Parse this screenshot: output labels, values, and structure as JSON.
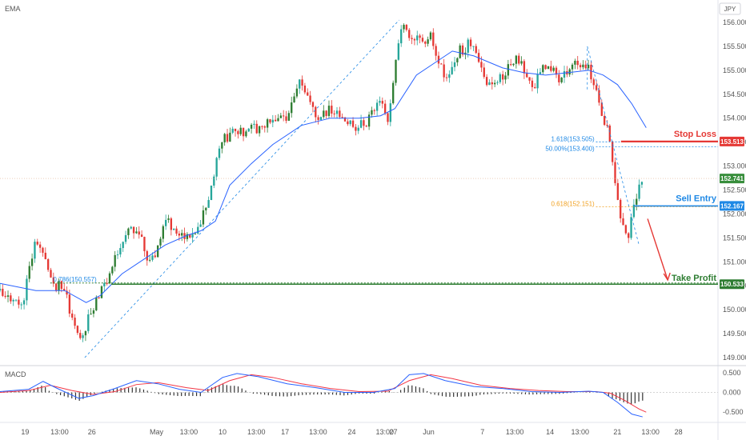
{
  "indicator_label": "EMA",
  "currency_label": "JPY",
  "macd_label": "MACD",
  "colors": {
    "up": "#26a69a",
    "up_strong": "#2e7d32",
    "down": "#e53935",
    "ema": "#2962ff",
    "macd_line": "#2962ff",
    "signal_line": "#f23645",
    "histogram": "#333333",
    "stop_loss": "#e53935",
    "sell_entry": "#1e88e5",
    "take_profit": "#2e7d32",
    "current_price": "#388e3c",
    "fib_blue": "#1e88e5",
    "fib_orange": "#f0a020"
  },
  "chart_data": {
    "type": "candlestick",
    "y_range": [
      148.95,
      156.2
    ],
    "y_ticks": [
      "156.000",
      "155.500",
      "155.000",
      "154.500",
      "154.000",
      "153.500",
      "153.000",
      "152.500",
      "152.000",
      "151.500",
      "151.000",
      "150.500",
      "150.000",
      "149.500",
      "149.000"
    ],
    "y_tick_values": [
      156.0,
      155.5,
      155.0,
      154.5,
      154.0,
      153.5,
      153.0,
      152.5,
      152.0,
      151.5,
      151.0,
      150.5,
      150.0,
      149.5,
      149.0
    ],
    "x_ticks": [
      "19",
      "13:00",
      "26",
      "May",
      "13:00",
      "10",
      "13:00",
      "17",
      "13:00",
      "24",
      "13:00",
      "27",
      "Jun",
      "7",
      "13:00",
      "14",
      "13:00",
      "21",
      "13:00",
      "28"
    ],
    "x_tick_positions": [
      0.035,
      0.083,
      0.128,
      0.218,
      0.263,
      0.31,
      0.357,
      0.397,
      0.443,
      0.49,
      0.536,
      0.548,
      0.597,
      0.672,
      0.717,
      0.766,
      0.808,
      0.86,
      0.906,
      0.945
    ],
    "candle_path_anchors": [
      [
        0.0,
        150.4
      ],
      [
        0.03,
        150.05
      ],
      [
        0.05,
        151.5
      ],
      [
        0.06,
        151.2
      ],
      [
        0.07,
        150.6
      ],
      [
        0.09,
        150.4
      ],
      [
        0.11,
        149.3
      ],
      [
        0.13,
        150.1
      ],
      [
        0.15,
        150.6
      ],
      [
        0.17,
        151.5
      ],
      [
        0.19,
        151.7
      ],
      [
        0.21,
        150.9
      ],
      [
        0.23,
        151.9
      ],
      [
        0.25,
        151.6
      ],
      [
        0.27,
        151.45
      ],
      [
        0.29,
        152.3
      ],
      [
        0.31,
        153.6
      ],
      [
        0.33,
        153.7
      ],
      [
        0.36,
        153.8
      ],
      [
        0.4,
        154.0
      ],
      [
        0.42,
        154.8
      ],
      [
        0.44,
        154.0
      ],
      [
        0.46,
        154.2
      ],
      [
        0.49,
        153.8
      ],
      [
        0.51,
        153.9
      ],
      [
        0.53,
        154.3
      ],
      [
        0.54,
        154.0
      ],
      [
        0.55,
        155.0
      ],
      [
        0.56,
        155.9
      ],
      [
        0.58,
        155.6
      ],
      [
        0.6,
        155.7
      ],
      [
        0.62,
        154.8
      ],
      [
        0.64,
        155.4
      ],
      [
        0.66,
        155.6
      ],
      [
        0.68,
        154.7
      ],
      [
        0.7,
        154.9
      ],
      [
        0.72,
        155.3
      ],
      [
        0.74,
        154.6
      ],
      [
        0.76,
        155.1
      ],
      [
        0.78,
        154.8
      ],
      [
        0.8,
        155.2
      ],
      [
        0.82,
        155.0
      ],
      [
        0.83,
        154.6
      ],
      [
        0.845,
        153.8
      ],
      [
        0.855,
        152.9
      ],
      [
        0.865,
        151.9
      ],
      [
        0.875,
        151.5
      ],
      [
        0.885,
        152.3
      ],
      [
        0.894,
        152.74
      ]
    ],
    "ema_points": [
      [
        0.0,
        150.55
      ],
      [
        0.05,
        150.4
      ],
      [
        0.09,
        150.4
      ],
      [
        0.12,
        150.15
      ],
      [
        0.14,
        150.3
      ],
      [
        0.17,
        150.75
      ],
      [
        0.2,
        151.05
      ],
      [
        0.23,
        151.35
      ],
      [
        0.26,
        151.55
      ],
      [
        0.28,
        151.65
      ],
      [
        0.3,
        151.85
      ],
      [
        0.32,
        152.6
      ],
      [
        0.35,
        153.05
      ],
      [
        0.38,
        153.45
      ],
      [
        0.42,
        153.85
      ],
      [
        0.46,
        154.0
      ],
      [
        0.5,
        154.0
      ],
      [
        0.53,
        154.05
      ],
      [
        0.55,
        154.2
      ],
      [
        0.58,
        154.9
      ],
      [
        0.61,
        155.2
      ],
      [
        0.63,
        155.4
      ],
      [
        0.66,
        155.3
      ],
      [
        0.7,
        155.05
      ],
      [
        0.73,
        154.95
      ],
      [
        0.76,
        154.9
      ],
      [
        0.79,
        154.95
      ],
      [
        0.82,
        155.0
      ],
      [
        0.84,
        154.9
      ],
      [
        0.86,
        154.7
      ],
      [
        0.88,
        154.3
      ],
      [
        0.9,
        153.8
      ]
    ],
    "annotations": {
      "stop_loss": {
        "label": "Stop Loss",
        "price": "153.513",
        "value": 153.513
      },
      "sell_entry": {
        "label": "Sell Entry",
        "price": "152.167",
        "value": 152.167
      },
      "take_profit": {
        "label": "Take Profit",
        "price": "150.533",
        "value": 150.533
      },
      "current_price": {
        "price": "152.741",
        "value": 152.741
      },
      "fib_upper_1618": {
        "label": "1.618(153.505)",
        "value": 153.505
      },
      "fib_upper_50": {
        "label": "50.00%(153.400)",
        "value": 153.4
      },
      "fib_0618": {
        "label": "0.618(152.151)",
        "value": 152.151
      },
      "fib_left": {
        "label": "0.786(150.557)",
        "value": 150.557
      }
    },
    "macd": {
      "y_ticks": [
        "0.500",
        "0.000",
        "-0.500"
      ],
      "y_tick_values": [
        0.5,
        0.0,
        -0.5
      ],
      "y_range": [
        -0.72,
        0.62
      ],
      "macd_points": [
        [
          0.0,
          0.02
        ],
        [
          0.04,
          0.08
        ],
        [
          0.06,
          0.28
        ],
        [
          0.08,
          0.1
        ],
        [
          0.11,
          -0.15
        ],
        [
          0.13,
          -0.08
        ],
        [
          0.16,
          0.1
        ],
        [
          0.19,
          0.3
        ],
        [
          0.22,
          0.22
        ],
        [
          0.25,
          0.08
        ],
        [
          0.28,
          0.0
        ],
        [
          0.31,
          0.38
        ],
        [
          0.33,
          0.48
        ],
        [
          0.36,
          0.4
        ],
        [
          0.4,
          0.22
        ],
        [
          0.44,
          0.12
        ],
        [
          0.48,
          0.0
        ],
        [
          0.52,
          0.0
        ],
        [
          0.55,
          0.1
        ],
        [
          0.57,
          0.45
        ],
        [
          0.59,
          0.48
        ],
        [
          0.62,
          0.3
        ],
        [
          0.66,
          0.15
        ],
        [
          0.7,
          0.1
        ],
        [
          0.74,
          0.02
        ],
        [
          0.78,
          0.0
        ],
        [
          0.82,
          0.03
        ],
        [
          0.84,
          0.0
        ],
        [
          0.86,
          -0.25
        ],
        [
          0.88,
          -0.55
        ],
        [
          0.895,
          -0.62
        ]
      ],
      "signal_points": [
        [
          0.0,
          0.0
        ],
        [
          0.04,
          0.05
        ],
        [
          0.07,
          0.18
        ],
        [
          0.1,
          0.05
        ],
        [
          0.13,
          -0.05
        ],
        [
          0.16,
          0.02
        ],
        [
          0.19,
          0.2
        ],
        [
          0.22,
          0.25
        ],
        [
          0.26,
          0.12
        ],
        [
          0.29,
          0.05
        ],
        [
          0.32,
          0.3
        ],
        [
          0.35,
          0.45
        ],
        [
          0.38,
          0.38
        ],
        [
          0.42,
          0.22
        ],
        [
          0.46,
          0.1
        ],
        [
          0.5,
          0.02
        ],
        [
          0.54,
          0.03
        ],
        [
          0.57,
          0.3
        ],
        [
          0.6,
          0.45
        ],
        [
          0.63,
          0.35
        ],
        [
          0.67,
          0.18
        ],
        [
          0.71,
          0.1
        ],
        [
          0.75,
          0.05
        ],
        [
          0.79,
          0.02
        ],
        [
          0.83,
          0.02
        ],
        [
          0.85,
          -0.02
        ],
        [
          0.87,
          -0.2
        ],
        [
          0.89,
          -0.42
        ],
        [
          0.9,
          -0.5
        ]
      ]
    }
  }
}
